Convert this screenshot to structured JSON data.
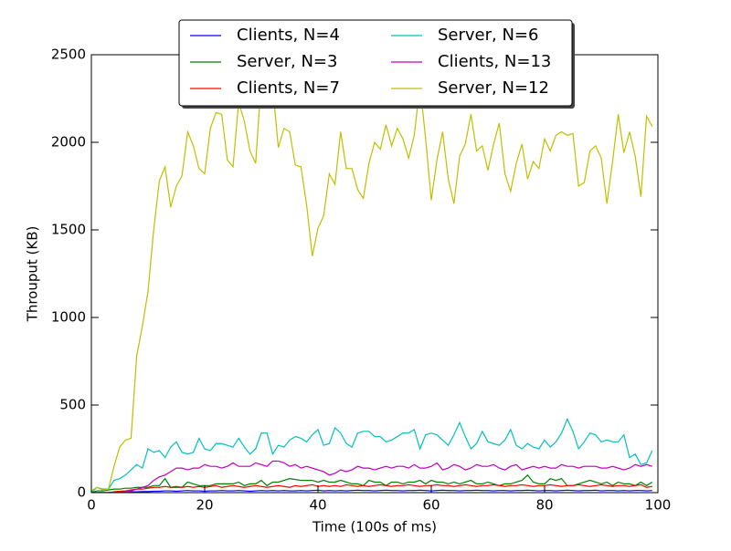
{
  "chart_data": {
    "type": "line",
    "xlabel": "Time (100s of ms)",
    "ylabel": "Throuput (KB)",
    "x": [
      0,
      1,
      2,
      3,
      4,
      5,
      6,
      7,
      8,
      9,
      10,
      11,
      12,
      13,
      14,
      15,
      16,
      17,
      18,
      19,
      20,
      21,
      22,
      23,
      24,
      25,
      26,
      27,
      28,
      29,
      30,
      31,
      32,
      33,
      34,
      35,
      36,
      37,
      38,
      39,
      40,
      41,
      42,
      43,
      44,
      45,
      46,
      47,
      48,
      49,
      50,
      51,
      52,
      53,
      54,
      55,
      56,
      57,
      58,
      59,
      60,
      61,
      62,
      63,
      64,
      65,
      66,
      67,
      68,
      69,
      70,
      71,
      72,
      73,
      74,
      75,
      76,
      77,
      78,
      79,
      80,
      81,
      82,
      83,
      84,
      85,
      86,
      87,
      88,
      89,
      90,
      91,
      92,
      93,
      94,
      95,
      96,
      97,
      98,
      99
    ],
    "xlim": [
      0,
      100
    ],
    "xticks": [
      0,
      20,
      40,
      60,
      80,
      100
    ],
    "ylim": [
      0,
      2500
    ],
    "yticks": [
      0,
      500,
      1000,
      1500,
      2000,
      2500
    ],
    "grid": false,
    "legend": "upper center",
    "legend_columns": 2,
    "series": [
      {
        "name": "Clients, N=4",
        "color": "#0000ff",
        "values": [
          0,
          0,
          0,
          0,
          2,
          3,
          4,
          5,
          5,
          6,
          6,
          8,
          8,
          10,
          10,
          8,
          10,
          12,
          10,
          10,
          8,
          10,
          10,
          12,
          10,
          10,
          12,
          10,
          8,
          10,
          12,
          10,
          12,
          10,
          12,
          10,
          10,
          12,
          10,
          12,
          14,
          10,
          12,
          10,
          12,
          10,
          12,
          14,
          12,
          12,
          10,
          12,
          14,
          12,
          12,
          10,
          12,
          12,
          14,
          12,
          10,
          12,
          14,
          12,
          12,
          10,
          12,
          12,
          14,
          12,
          12,
          10,
          12,
          12,
          10,
          12,
          12,
          14,
          12,
          10,
          12,
          12,
          10,
          12,
          14,
          12,
          10,
          12,
          12,
          14,
          10,
          12,
          12,
          10,
          12,
          10,
          12,
          12,
          10,
          12
        ]
      },
      {
        "name": "Server, N=3",
        "color": "#008000",
        "values": [
          0,
          10,
          10,
          15,
          20,
          20,
          25,
          25,
          30,
          30,
          30,
          40,
          40,
          80,
          30,
          30,
          30,
          60,
          50,
          40,
          40,
          40,
          50,
          50,
          50,
          50,
          60,
          40,
          50,
          50,
          70,
          40,
          60,
          60,
          70,
          80,
          75,
          70,
          70,
          70,
          60,
          70,
          60,
          60,
          70,
          60,
          50,
          50,
          40,
          70,
          60,
          60,
          40,
          60,
          60,
          50,
          60,
          60,
          70,
          50,
          70,
          60,
          60,
          50,
          60,
          50,
          60,
          70,
          50,
          50,
          60,
          50,
          40,
          50,
          50,
          60,
          70,
          100,
          60,
          50,
          50,
          80,
          70,
          80,
          40,
          40,
          50,
          60,
          70,
          60,
          50,
          60,
          40,
          60,
          50,
          50,
          40,
          60,
          40,
          60
        ]
      },
      {
        "name": "Clients, N=7",
        "color": "#ff0000",
        "values": [
          0,
          0,
          0,
          0,
          5,
          8,
          10,
          15,
          20,
          20,
          25,
          30,
          30,
          35,
          30,
          35,
          30,
          35,
          30,
          35,
          30,
          35,
          40,
          30,
          35,
          40,
          35,
          30,
          35,
          40,
          35,
          30,
          35,
          40,
          35,
          30,
          40,
          35,
          40,
          45,
          35,
          40,
          35,
          40,
          35,
          45,
          40,
          35,
          40,
          35,
          40,
          45,
          40,
          35,
          40,
          40,
          45,
          40,
          35,
          40,
          40,
          45,
          40,
          40,
          35,
          40,
          45,
          40,
          35,
          40,
          40,
          45,
          40,
          35,
          40,
          40,
          45,
          40,
          35,
          40,
          40,
          45,
          40,
          35,
          40,
          40,
          45,
          40,
          35,
          40,
          45,
          40,
          35,
          40,
          40,
          35,
          40,
          45,
          30,
          35
        ]
      },
      {
        "name": "Server, N=6",
        "color": "#00bfbf",
        "values": [
          0,
          30,
          20,
          20,
          70,
          80,
          100,
          130,
          160,
          140,
          250,
          230,
          240,
          200,
          260,
          290,
          230,
          220,
          230,
          310,
          250,
          240,
          280,
          280,
          270,
          260,
          310,
          260,
          220,
          250,
          340,
          340,
          220,
          270,
          260,
          300,
          320,
          310,
          290,
          330,
          360,
          270,
          280,
          370,
          340,
          280,
          260,
          340,
          350,
          350,
          320,
          320,
          290,
          300,
          320,
          340,
          340,
          360,
          250,
          330,
          340,
          330,
          300,
          270,
          330,
          400,
          320,
          250,
          280,
          350,
          290,
          280,
          270,
          300,
          360,
          270,
          250,
          280,
          260,
          250,
          300,
          260,
          290,
          340,
          420,
          350,
          250,
          290,
          340,
          330,
          290,
          300,
          290,
          290,
          330,
          200,
          220,
          160,
          170,
          240
        ]
      },
      {
        "name": "Clients, N=13",
        "color": "#bf00bf",
        "values": [
          0,
          0,
          0,
          0,
          0,
          0,
          0,
          10,
          20,
          30,
          40,
          70,
          90,
          100,
          120,
          140,
          140,
          130,
          140,
          140,
          160,
          150,
          150,
          140,
          150,
          170,
          150,
          150,
          150,
          170,
          160,
          150,
          180,
          180,
          170,
          150,
          160,
          140,
          150,
          140,
          130,
          120,
          100,
          110,
          130,
          120,
          130,
          150,
          140,
          140,
          130,
          140,
          150,
          140,
          150,
          150,
          140,
          160,
          140,
          140,
          150,
          170,
          130,
          140,
          160,
          150,
          130,
          140,
          160,
          150,
          150,
          160,
          140,
          130,
          150,
          160,
          130,
          140,
          150,
          140,
          150,
          140,
          140,
          160,
          150,
          150,
          140,
          150,
          150,
          150,
          140,
          140,
          150,
          140,
          130,
          140,
          160,
          150,
          160,
          150
        ]
      },
      {
        "name": "Server, N=12",
        "color": "#bfbf00",
        "values": [
          10,
          30,
          15,
          20,
          150,
          260,
          300,
          310,
          780,
          950,
          1150,
          1500,
          1780,
          1860,
          1630,
          1750,
          1810,
          2060,
          1980,
          1850,
          1820,
          2080,
          2170,
          2160,
          1900,
          1860,
          2230,
          2120,
          1950,
          1880,
          2360,
          2310,
          2320,
          1970,
          2080,
          2060,
          1870,
          1860,
          1640,
          1350,
          1510,
          1580,
          1820,
          1760,
          2060,
          1850,
          1850,
          1730,
          1680,
          1880,
          2000,
          1960,
          2100,
          1980,
          2080,
          2020,
          1910,
          2040,
          2330,
          2020,
          1670,
          1900,
          2060,
          1790,
          1650,
          1920,
          1990,
          2160,
          1950,
          1980,
          1840,
          1990,
          2110,
          1820,
          1720,
          1880,
          1990,
          1790,
          1890,
          1850,
          2020,
          1950,
          2040,
          2060,
          2040,
          2050,
          1750,
          1770,
          1950,
          1980,
          1910,
          1650,
          1890,
          2160,
          1940,
          2060,
          1920,
          1690,
          2150,
          2090
        ]
      }
    ]
  }
}
